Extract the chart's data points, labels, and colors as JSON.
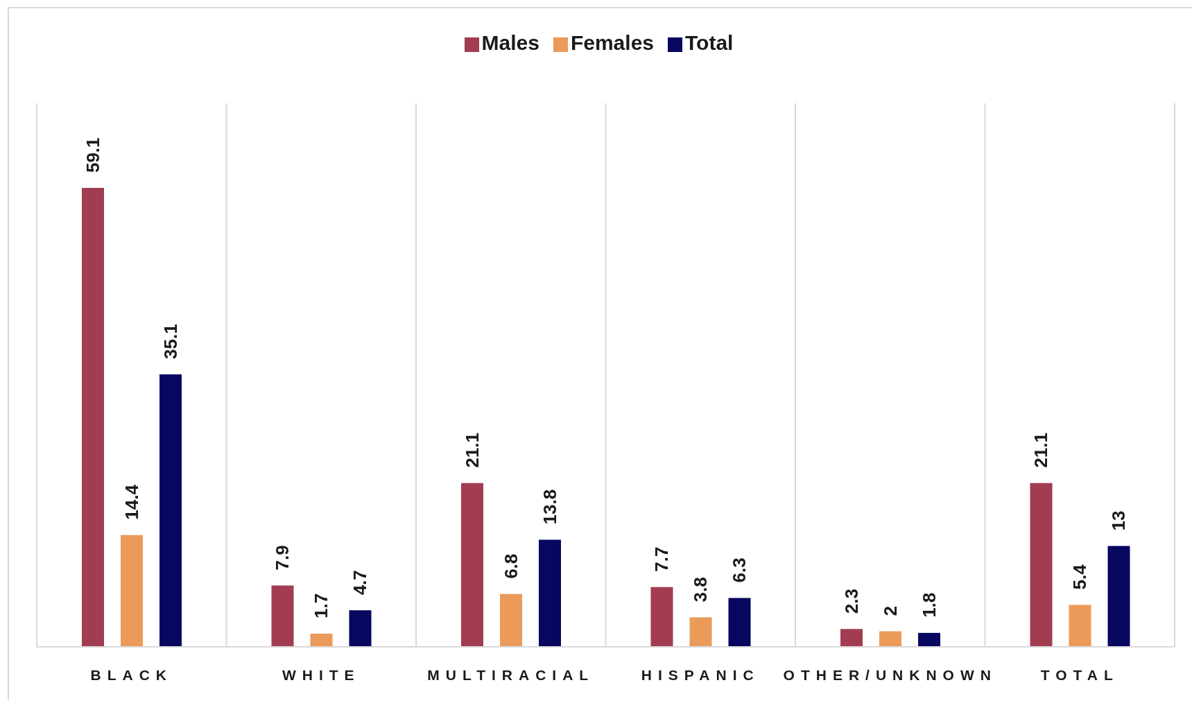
{
  "chart_data": {
    "type": "bar",
    "categories": [
      "BLACK",
      "WHITE",
      "MULTIRACIAL",
      "HISPANIC",
      "OTHER/UNKNOWN",
      "TOTAL"
    ],
    "series": [
      {
        "name": "Males",
        "color": "#a23c50",
        "values": [
          59.1,
          7.9,
          21.1,
          7.7,
          2.3,
          21.1
        ]
      },
      {
        "name": "Females",
        "color": "#eb9a5a",
        "values": [
          14.4,
          1.7,
          6.8,
          3.8,
          2,
          5.4
        ]
      },
      {
        "name": "Total",
        "color": "#07075f",
        "values": [
          35.1,
          4.7,
          13.8,
          6.3,
          1.8,
          13
        ]
      }
    ],
    "ylim": [
      0,
      70
    ],
    "tick_labels": "x",
    "grid": "x",
    "legend": "top",
    "data_labels": true
  }
}
